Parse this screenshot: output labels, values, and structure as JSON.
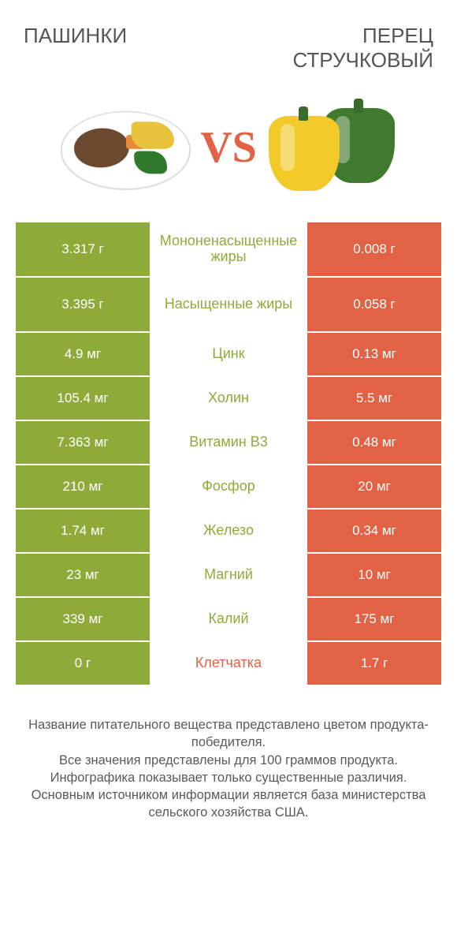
{
  "colors": {
    "left_winner": "#8eab3a",
    "right_winner": "#e16244",
    "mid_bg": "#ffffff",
    "text_white": "#ffffff",
    "vs_color": "#e16244"
  },
  "products": {
    "left": {
      "title": "ПАШИНКИ"
    },
    "right": {
      "title": "ПЕРЕЦ СТРУЧКОВЫЙ"
    }
  },
  "vs_label": "VS",
  "rows": [
    {
      "left": "3.317 г",
      "label": "Мононенасыщенные жиры",
      "right": "0.008 г",
      "winner": "left",
      "tall": true
    },
    {
      "left": "3.395 г",
      "label": "Насыщенные жиры",
      "right": "0.058 г",
      "winner": "left",
      "tall": true
    },
    {
      "left": "4.9 мг",
      "label": "Цинк",
      "right": "0.13 мг",
      "winner": "left",
      "tall": false
    },
    {
      "left": "105.4 мг",
      "label": "Холин",
      "right": "5.5 мг",
      "winner": "left",
      "tall": false
    },
    {
      "left": "7.363 мг",
      "label": "Витамин B3",
      "right": "0.48 мг",
      "winner": "left",
      "tall": false
    },
    {
      "left": "210 мг",
      "label": "Фосфор",
      "right": "20 мг",
      "winner": "left",
      "tall": false
    },
    {
      "left": "1.74 мг",
      "label": "Железо",
      "right": "0.34 мг",
      "winner": "left",
      "tall": false
    },
    {
      "left": "23 мг",
      "label": "Магний",
      "right": "10 мг",
      "winner": "left",
      "tall": false
    },
    {
      "left": "339 мг",
      "label": "Калий",
      "right": "175 мг",
      "winner": "left",
      "tall": false
    },
    {
      "left": "0 г",
      "label": "Клетчатка",
      "right": "1.7 г",
      "winner": "right",
      "tall": false
    }
  ],
  "footnotes": [
    "Название питательного вещества представлено цветом продукта-победителя.",
    "Все значения представлены для 100 граммов продукта.",
    "Инфографика показывает только существенные различия.",
    "Основным источником информации является база министерства сельского хозяйства США."
  ]
}
